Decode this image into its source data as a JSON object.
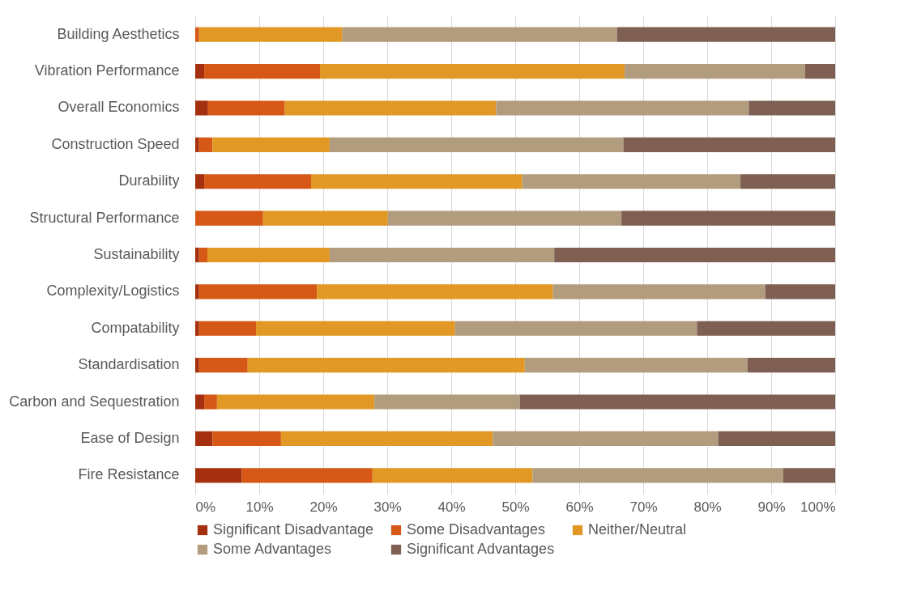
{
  "chart_data": {
    "type": "bar",
    "orientation": "horizontal",
    "stacked": true,
    "categories": [
      "Building Aesthetics",
      "Vibration Performance",
      "Overall Economics",
      "Construction Speed",
      "Durability",
      "Structural Performance",
      "Sustainability",
      "Complexity/Logistics",
      "Compatability",
      "Standardisation",
      "Carbon and Sequestration",
      "Ease of Design",
      "Fire Resistance"
    ],
    "series": [
      {
        "name": "Significant Disadvantage",
        "color": "#a5300f",
        "values": [
          0,
          1.4,
          2.0,
          0.6,
          1.4,
          0,
          0.6,
          0.6,
          0.6,
          0.6,
          1.4,
          2.7,
          7.3
        ]
      },
      {
        "name": "Some Disadvantages",
        "color": "#d55816",
        "values": [
          0.6,
          18.1,
          12.0,
          2.1,
          16.7,
          10.6,
          1.3,
          18.4,
          8.9,
          7.6,
          2.0,
          10.7,
          20.4
        ]
      },
      {
        "name": "Neither/Neutral",
        "color": "#e19825",
        "values": [
          22.4,
          47.6,
          33.0,
          18.3,
          33.0,
          19.5,
          19.1,
          36.9,
          31.1,
          43.3,
          24.6,
          33.1,
          25.0
        ]
      },
      {
        "name": "Some Advantages",
        "color": "#b19c7d",
        "values": [
          42.9,
          28.2,
          39.5,
          45.9,
          34.1,
          36.5,
          35.1,
          33.2,
          37.8,
          34.8,
          22.7,
          35.2,
          39.2
        ]
      },
      {
        "name": "Significant Advantages",
        "color": "#7f5f52",
        "values": [
          34.1,
          4.7,
          13.5,
          33.1,
          14.8,
          33.4,
          43.9,
          10.9,
          21.6,
          13.7,
          49.3,
          18.3,
          8.1
        ]
      }
    ],
    "xlim": [
      0,
      100
    ],
    "xticks": [
      {
        "value": 0,
        "label": "0%"
      },
      {
        "value": 10,
        "label": "10%"
      },
      {
        "value": 20,
        "label": "20%"
      },
      {
        "value": 30,
        "label": "30%"
      },
      {
        "value": 40,
        "label": "40%"
      },
      {
        "value": 50,
        "label": "50%"
      },
      {
        "value": 60,
        "label": "60%"
      },
      {
        "value": 70,
        "label": "70%"
      },
      {
        "value": 80,
        "label": "80%"
      },
      {
        "value": 90,
        "label": "90%"
      },
      {
        "value": 100,
        "label": "100%"
      }
    ],
    "grid": "x",
    "legend": "bottom"
  }
}
